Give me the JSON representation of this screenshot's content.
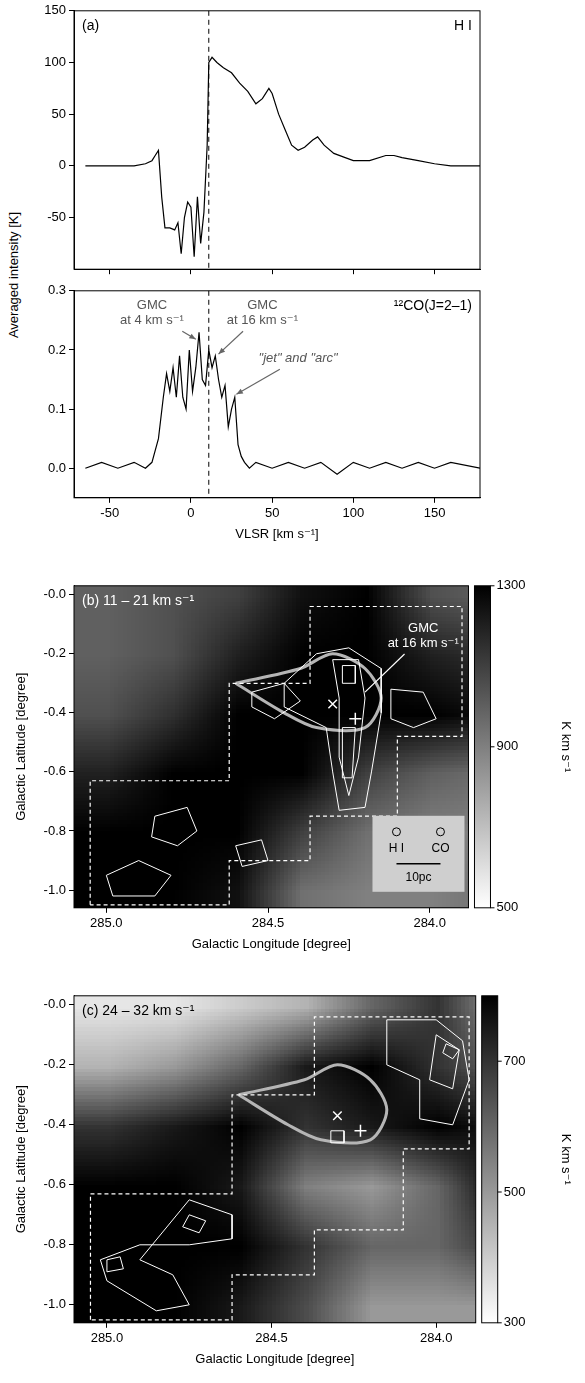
{
  "chart_data": [
    {
      "type": "line",
      "panel": "(a)",
      "label": "H I",
      "ylabel": "Averaged intensity [K]",
      "x": [
        -65,
        -50,
        -35,
        -28,
        -24,
        -22,
        -20,
        -18,
        -16,
        -13,
        -10,
        -8,
        -6,
        -4,
        -2,
        0,
        2,
        4,
        6,
        8,
        10,
        11,
        13,
        16,
        20,
        25,
        30,
        35,
        40,
        44,
        48,
        50,
        54,
        58,
        62,
        66,
        70,
        75,
        78,
        82,
        88,
        95,
        100,
        110,
        120,
        125,
        130,
        140,
        150,
        160,
        178
      ],
      "values": [
        0,
        0,
        0,
        2,
        5,
        10,
        15,
        -30,
        -60,
        -60,
        -62,
        -55,
        -85,
        -50,
        -35,
        -40,
        -88,
        -30,
        -75,
        -45,
        20,
        100,
        105,
        100,
        95,
        90,
        80,
        72,
        60,
        65,
        75,
        70,
        50,
        35,
        20,
        15,
        18,
        25,
        28,
        20,
        12,
        8,
        5,
        5,
        10,
        10,
        8,
        5,
        2,
        0,
        0
      ],
      "xlim": [
        -72,
        178
      ],
      "xticks": [
        -50,
        0,
        50,
        100,
        150
      ],
      "ylim": [
        -100,
        150
      ],
      "yticks": [
        -50,
        0,
        50,
        100,
        150
      ],
      "vline": 11,
      "grid": false,
      "tick_labels": "y",
      "color": "#000000"
    },
    {
      "type": "line",
      "label": "¹²CO(J=2–1)",
      "xlabel": "VLSR [km s⁻¹]",
      "x": [
        -65,
        -55,
        -45,
        -35,
        -28,
        -24,
        -20,
        -17,
        -15,
        -13,
        -11,
        -9,
        -7,
        -5,
        -3,
        -1,
        1,
        3,
        5,
        7,
        9,
        11,
        13,
        15,
        17,
        19,
        21,
        23,
        25,
        27,
        29,
        31,
        33,
        36,
        40,
        50,
        60,
        70,
        80,
        90,
        100,
        110,
        120,
        130,
        140,
        150,
        160,
        178
      ],
      "values": [
        0,
        0.01,
        0,
        0.01,
        0,
        0.01,
        0.05,
        0.12,
        0.16,
        0.13,
        0.17,
        0.12,
        0.19,
        0.12,
        0.1,
        0.2,
        0.13,
        0.17,
        0.23,
        0.15,
        0.14,
        0.2,
        0.17,
        0.19,
        0.15,
        0.12,
        0.14,
        0.07,
        0.1,
        0.12,
        0.04,
        0.02,
        0.01,
        0,
        0.01,
        0,
        0.01,
        0,
        0.01,
        -0.01,
        0.01,
        0,
        0.01,
        0,
        0.01,
        0,
        0.01,
        0
      ],
      "xlim": [
        -72,
        178
      ],
      "xticks": [
        -50,
        0,
        50,
        100,
        150
      ],
      "ylim": [
        -0.05,
        0.3
      ],
      "yticks": [
        {
          "value": 0,
          "label": "0.0"
        },
        0.1,
        0.2,
        0.3
      ],
      "vline": 11,
      "grid": false,
      "color": "#000000",
      "annotations": [
        {
          "text": "GMC at 4 km s⁻¹",
          "at": [
            -24,
            0.262
          ],
          "to": [
            3,
            0.218
          ]
        },
        {
          "text": "GMC at 16 km s⁻¹",
          "at": [
            44,
            0.262
          ],
          "to": [
            17,
            0.193
          ]
        },
        {
          "text": "\"jet\" and \"arc\"",
          "at": [
            66,
            0.185
          ],
          "to": [
            28,
            0.125
          ]
        }
      ]
    },
    {
      "type": "map",
      "title": "(b) 11 – 21 km s⁻¹",
      "xlabel": "Galactic Longitude [degree]",
      "ylabel": "Galactic Latitude [degree]",
      "xlim": [
        285.1,
        283.88
      ],
      "xticks": [
        {
          "value": 285,
          "label": "285.0"
        },
        284.5,
        {
          "value": 284,
          "label": "284.0"
        }
      ],
      "ylim": [
        -1.06,
        0.03
      ],
      "yticks": [
        {
          "value": -1,
          "label": "-1.0"
        },
        -0.8,
        -0.6,
        -0.4,
        -0.2,
        {
          "value": 0,
          "label": "-0.0"
        }
      ],
      "cells": {
        "x": [
          285.0,
          284.8,
          284.6,
          284.4,
          284.2,
          284.0,
          283.8
        ],
        "y": [
          0,
          -0.2,
          -0.4,
          -0.6,
          -0.8,
          -1.0
        ],
        "values": [
          [
            1000,
            1050,
            1100,
            1250,
            1300,
            1050,
            1000
          ],
          [
            1000,
            1050,
            1200,
            1300,
            1300,
            1200,
            1150
          ],
          [
            1050,
            1150,
            1300,
            1300,
            1300,
            1300,
            1250
          ],
          [
            1200,
            1300,
            1300,
            1300,
            1100,
            1000,
            950
          ],
          [
            1300,
            1300,
            1300,
            1100,
            950,
            900,
            900
          ],
          [
            1300,
            1300,
            1250,
            950,
            900,
            900,
            950
          ]
        ]
      },
      "colorbar": {
        "lim": [
          500,
          1300
        ],
        "ticks": [
          500,
          900,
          1300
        ],
        "label": "K km s⁻¹"
      },
      "contours": [
        [
          [
            284.45,
            -0.3
          ],
          [
            284.35,
            -0.2
          ],
          [
            284.25,
            -0.18
          ],
          [
            284.15,
            -0.25
          ],
          [
            284.15,
            -0.4
          ],
          [
            284.18,
            -0.6
          ],
          [
            284.2,
            -0.72
          ],
          [
            284.28,
            -0.73
          ],
          [
            284.3,
            -0.6
          ],
          [
            284.32,
            -0.45
          ],
          [
            284.45,
            -0.38
          ],
          [
            284.45,
            -0.3
          ]
        ],
        [
          [
            284.3,
            -0.22
          ],
          [
            284.22,
            -0.22
          ],
          [
            284.2,
            -0.35
          ],
          [
            284.22,
            -0.55
          ],
          [
            284.25,
            -0.68
          ],
          [
            284.28,
            -0.55
          ],
          [
            284.28,
            -0.35
          ],
          [
            284.3,
            -0.22
          ]
        ],
        [
          [
            284.27,
            -0.24
          ],
          [
            284.23,
            -0.24
          ],
          [
            284.23,
            -0.3
          ],
          [
            284.27,
            -0.3
          ],
          [
            284.27,
            -0.24
          ]
        ],
        [
          [
            284.27,
            -0.45
          ],
          [
            284.23,
            -0.45
          ],
          [
            284.24,
            -0.62
          ],
          [
            284.27,
            -0.62
          ],
          [
            284.27,
            -0.45
          ]
        ],
        [
          [
            284.12,
            -0.32
          ],
          [
            284.02,
            -0.33
          ],
          [
            283.98,
            -0.42
          ],
          [
            284.05,
            -0.45
          ],
          [
            284.12,
            -0.42
          ],
          [
            284.12,
            -0.32
          ]
        ],
        [
          [
            284.55,
            -0.33
          ],
          [
            284.45,
            -0.3
          ],
          [
            284.4,
            -0.36
          ],
          [
            284.48,
            -0.42
          ],
          [
            284.55,
            -0.38
          ],
          [
            284.55,
            -0.33
          ]
        ],
        [
          [
            284.85,
            -0.75
          ],
          [
            284.75,
            -0.72
          ],
          [
            284.72,
            -0.8
          ],
          [
            284.78,
            -0.85
          ],
          [
            284.86,
            -0.82
          ],
          [
            284.85,
            -0.75
          ]
        ],
        [
          [
            285.0,
            -0.95
          ],
          [
            284.9,
            -0.9
          ],
          [
            284.8,
            -0.95
          ],
          [
            284.85,
            -1.02
          ],
          [
            284.98,
            -1.02
          ],
          [
            285.0,
            -0.95
          ]
        ],
        [
          [
            284.6,
            -0.85
          ],
          [
            284.52,
            -0.83
          ],
          [
            284.5,
            -0.9
          ],
          [
            284.58,
            -0.92
          ],
          [
            284.6,
            -0.85
          ]
        ]
      ],
      "region": [
        [
          285.05,
          -1.05
        ],
        [
          285.05,
          -0.63
        ],
        [
          284.62,
          -0.63
        ],
        [
          284.62,
          -0.3
        ],
        [
          284.37,
          -0.3
        ],
        [
          284.37,
          -0.04
        ],
        [
          283.9,
          -0.04
        ],
        [
          283.9,
          -0.48
        ],
        [
          284.1,
          -0.48
        ],
        [
          284.1,
          -0.75
        ],
        [
          284.37,
          -0.75
        ],
        [
          284.37,
          -0.9
        ],
        [
          284.62,
          -0.9
        ],
        [
          284.62,
          -1.05
        ],
        [
          285.05,
          -1.05
        ]
      ],
      "outline": [
        [
          284.6,
          -0.3
        ],
        [
          284.4,
          -0.25
        ],
        [
          284.3,
          -0.2
        ],
        [
          284.2,
          -0.25
        ],
        [
          284.15,
          -0.35
        ],
        [
          284.2,
          -0.45
        ],
        [
          284.35,
          -0.45
        ],
        [
          284.45,
          -0.4
        ],
        [
          284.6,
          -0.3
        ]
      ],
      "markers": [
        {
          "x": 284.3,
          "y": -0.37,
          "marker": "x"
        },
        {
          "x": 284.23,
          "y": -0.42,
          "marker": "+"
        }
      ],
      "annotations": [
        {
          "text": "GMC at 16 km s⁻¹",
          "at": [
            284.02,
            -0.14
          ],
          "to": [
            284.2,
            -0.33
          ]
        }
      ],
      "beam": {
        "labels": [
          "H I",
          "CO"
        ],
        "scale_label": "10pc"
      }
    },
    {
      "type": "map",
      "title": "(c) 24 – 32 km s⁻¹",
      "xlabel": "Galactic Longitude [degree]",
      "ylabel": "Galactic Latitude [degree]",
      "xlim": [
        285.1,
        283.88
      ],
      "xticks": [
        {
          "value": 285,
          "label": "285.0"
        },
        284.5,
        {
          "value": 284,
          "label": "284.0"
        }
      ],
      "ylim": [
        -1.06,
        0.03
      ],
      "yticks": [
        {
          "value": -1,
          "label": "-1.0"
        },
        -0.8,
        -0.6,
        -0.4,
        -0.2,
        {
          "value": 0,
          "label": "-0.0"
        }
      ],
      "cells": {
        "x": [
          285.0,
          284.8,
          284.6,
          284.4,
          284.2,
          284.0,
          283.8
        ],
        "y": [
          0,
          -0.2,
          -0.4,
          -0.6,
          -0.8,
          -1.0
        ],
        "values": [
          [
            350,
            350,
            400,
            450,
            600,
            700,
            500
          ],
          [
            450,
            500,
            600,
            750,
            800,
            700,
            600
          ],
          [
            700,
            750,
            800,
            700,
            750,
            800,
            750
          ],
          [
            800,
            800,
            750,
            550,
            500,
            600,
            800
          ],
          [
            800,
            800,
            800,
            700,
            600,
            600,
            700
          ],
          [
            800,
            800,
            750,
            650,
            500,
            500,
            500
          ]
        ]
      },
      "colorbar": {
        "lim": [
          300,
          800
        ],
        "ticks": [
          300,
          500,
          700
        ],
        "label": "K km s⁻¹"
      },
      "contours": [
        [
          [
            284.15,
            -0.05
          ],
          [
            284.0,
            -0.05
          ],
          [
            283.92,
            -0.12
          ],
          [
            283.9,
            -0.25
          ],
          [
            283.95,
            -0.4
          ],
          [
            284.05,
            -0.38
          ],
          [
            284.05,
            -0.25
          ],
          [
            284.15,
            -0.2
          ],
          [
            284.15,
            -0.05
          ]
        ],
        [
          [
            284.0,
            -0.1
          ],
          [
            283.93,
            -0.15
          ],
          [
            283.95,
            -0.28
          ],
          [
            284.02,
            -0.25
          ],
          [
            284.0,
            -0.1
          ]
        ],
        [
          [
            283.97,
            -0.13
          ],
          [
            283.93,
            -0.15
          ],
          [
            283.95,
            -0.18
          ],
          [
            283.98,
            -0.16
          ],
          [
            283.97,
            -0.13
          ]
        ],
        [
          [
            284.75,
            -0.65
          ],
          [
            284.62,
            -0.7
          ],
          [
            284.62,
            -0.78
          ],
          [
            284.75,
            -0.8
          ],
          [
            284.9,
            -0.8
          ],
          [
            285.02,
            -0.85
          ],
          [
            285.0,
            -0.92
          ],
          [
            284.85,
            -1.02
          ],
          [
            284.75,
            -1.0
          ],
          [
            284.8,
            -0.9
          ],
          [
            284.9,
            -0.85
          ],
          [
            284.75,
            -0.65
          ]
        ],
        [
          [
            285.0,
            -0.85
          ],
          [
            284.96,
            -0.84
          ],
          [
            284.95,
            -0.88
          ],
          [
            285.0,
            -0.89
          ],
          [
            285.0,
            -0.85
          ]
        ],
        [
          [
            284.75,
            -0.7
          ],
          [
            284.7,
            -0.72
          ],
          [
            284.72,
            -0.76
          ],
          [
            284.77,
            -0.74
          ],
          [
            284.75,
            -0.7
          ]
        ],
        [
          [
            284.32,
            -0.42
          ],
          [
            284.28,
            -0.42
          ],
          [
            284.28,
            -0.46
          ],
          [
            284.32,
            -0.46
          ],
          [
            284.32,
            -0.42
          ]
        ]
      ],
      "region": [
        [
          285.05,
          -1.05
        ],
        [
          285.05,
          -0.63
        ],
        [
          284.62,
          -0.63
        ],
        [
          284.62,
          -0.3
        ],
        [
          284.37,
          -0.3
        ],
        [
          284.37,
          -0.04
        ],
        [
          283.9,
          -0.04
        ],
        [
          283.9,
          -0.48
        ],
        [
          284.1,
          -0.48
        ],
        [
          284.1,
          -0.75
        ],
        [
          284.37,
          -0.75
        ],
        [
          284.37,
          -0.9
        ],
        [
          284.62,
          -0.9
        ],
        [
          284.62,
          -1.05
        ],
        [
          285.05,
          -1.05
        ]
      ],
      "outline": [
        [
          284.6,
          -0.3
        ],
        [
          284.4,
          -0.25
        ],
        [
          284.3,
          -0.2
        ],
        [
          284.2,
          -0.25
        ],
        [
          284.15,
          -0.35
        ],
        [
          284.2,
          -0.45
        ],
        [
          284.35,
          -0.45
        ],
        [
          284.45,
          -0.4
        ],
        [
          284.6,
          -0.3
        ]
      ],
      "markers": [
        {
          "x": 284.3,
          "y": -0.37,
          "marker": "x"
        },
        {
          "x": 284.23,
          "y": -0.42,
          "marker": "+"
        }
      ]
    }
  ]
}
